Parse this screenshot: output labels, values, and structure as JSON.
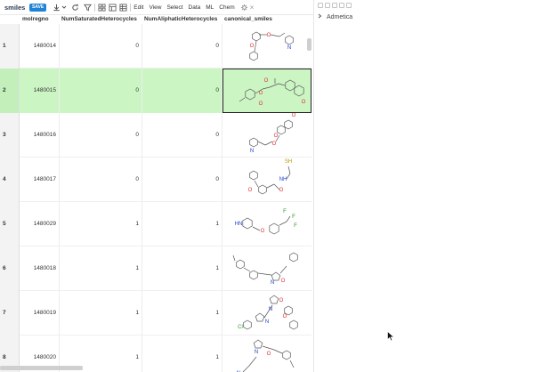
{
  "toolbar": {
    "title": "smiles",
    "save_label": "SAVE",
    "menus": [
      "Edit",
      "View",
      "Select",
      "Data",
      "ML",
      "Chem"
    ],
    "icons": [
      "download-icon",
      "chevron-down-icon",
      "refresh-icon",
      "filter-icon",
      "grid-icon",
      "layout-icon",
      "table-icon",
      "settings-icon",
      "close-icon"
    ]
  },
  "grid": {
    "columns": [
      "molregno",
      "NumSaturatedHeterocycles",
      "NumAliphaticHeterocycles",
      "canonical_smiles"
    ],
    "rows": [
      {
        "num": "1",
        "molregno": "1480014",
        "sat": "0",
        "ali": "0"
      },
      {
        "num": "2",
        "molregno": "1480015",
        "sat": "0",
        "ali": "0"
      },
      {
        "num": "3",
        "molregno": "1480016",
        "sat": "0",
        "ali": "0"
      },
      {
        "num": "4",
        "molregno": "1480017",
        "sat": "0",
        "ali": "0"
      },
      {
        "num": "5",
        "molregno": "1480029",
        "sat": "1",
        "ali": "1"
      },
      {
        "num": "6",
        "molregno": "1480018",
        "sat": "1",
        "ali": "1"
      },
      {
        "num": "7",
        "molregno": "1480019",
        "sat": "1",
        "ali": "1"
      },
      {
        "num": "8",
        "molregno": "1480020",
        "sat": "1",
        "ali": "1"
      }
    ],
    "selected_row": "2"
  },
  "right_panel": {
    "tree_item": "Admetica"
  },
  "colors": {
    "accent": "#2083d5",
    "selected_row": "#ccf5c4",
    "bond": "#555555",
    "oxygen": "#e03030",
    "nitrogen": "#1a3fd0",
    "fluorine": "#2a9a2a",
    "sulfur": "#b59a00"
  }
}
